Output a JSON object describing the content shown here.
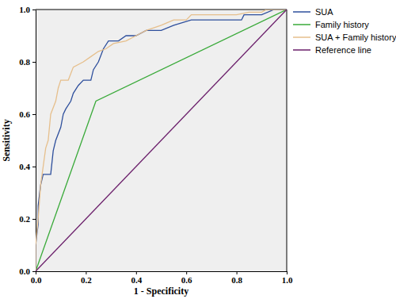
{
  "chart_data": {
    "type": "line",
    "x_label": "1 - Specificity",
    "y_label": "Sensitivity",
    "xlim": [
      0,
      1
    ],
    "ylim": [
      0,
      1
    ],
    "xticks": [
      {
        "value": 0,
        "label": "0.0"
      },
      {
        "value": 0.2,
        "label": "0.2"
      },
      {
        "value": 0.4,
        "label": "0.4"
      },
      {
        "value": 0.6,
        "label": "0.6"
      },
      {
        "value": 0.8,
        "label": "0.8"
      },
      {
        "value": 1,
        "label": "1.0"
      }
    ],
    "yticks": [
      {
        "value": 0,
        "label": "0.0"
      },
      {
        "value": 0.2,
        "label": "0.2"
      },
      {
        "value": 0.4,
        "label": "0.4"
      },
      {
        "value": 0.6,
        "label": "0.6"
      },
      {
        "value": 0.8,
        "label": "0.8"
      },
      {
        "value": 1,
        "label": "1.0"
      }
    ],
    "legend": "right",
    "series": [
      {
        "name": "SUA",
        "color": "#2e4f9c",
        "x": [
          0,
          0,
          0.01,
          0.01,
          0.02,
          0.03,
          0.06,
          0.07,
          0.08,
          0.1,
          0.11,
          0.12,
          0.14,
          0.15,
          0.17,
          0.19,
          0.22,
          0.23,
          0.25,
          0.27,
          0.29,
          0.33,
          0.36,
          0.4,
          0.44,
          0.5,
          0.55,
          0.62,
          0.68,
          0.82,
          0.83,
          0.9,
          0.95,
          1
        ],
        "values": [
          0,
          0.1,
          0.18,
          0.25,
          0.33,
          0.37,
          0.37,
          0.46,
          0.5,
          0.55,
          0.6,
          0.62,
          0.65,
          0.68,
          0.71,
          0.73,
          0.73,
          0.77,
          0.8,
          0.85,
          0.88,
          0.88,
          0.9,
          0.9,
          0.92,
          0.92,
          0.94,
          0.96,
          0.96,
          0.96,
          0.98,
          0.98,
          1,
          1
        ]
      },
      {
        "name": "Family history",
        "color": "#3aaa3a",
        "x": [
          0,
          0.24,
          1
        ],
        "values": [
          0,
          0.65,
          1
        ]
      },
      {
        "name": "SUA + Family history",
        "color": "#e6bf8c",
        "x": [
          0,
          0,
          0.01,
          0.02,
          0.03,
          0.04,
          0.05,
          0.06,
          0.08,
          0.09,
          0.1,
          0.13,
          0.15,
          0.19,
          0.22,
          0.25,
          0.28,
          0.31,
          0.36,
          0.4,
          0.44,
          0.5,
          0.55,
          0.6,
          0.62,
          0.8,
          0.85,
          0.9,
          0.92,
          1
        ],
        "values": [
          0,
          0.1,
          0.2,
          0.33,
          0.4,
          0.47,
          0.5,
          0.6,
          0.65,
          0.7,
          0.73,
          0.73,
          0.78,
          0.8,
          0.82,
          0.84,
          0.85,
          0.87,
          0.88,
          0.9,
          0.92,
          0.94,
          0.96,
          0.96,
          0.98,
          0.98,
          0.99,
          0.99,
          1,
          1
        ]
      },
      {
        "name": "Reference line",
        "color": "#6b1f6b",
        "x": [
          0,
          1
        ],
        "values": [
          0,
          1
        ]
      }
    ]
  }
}
